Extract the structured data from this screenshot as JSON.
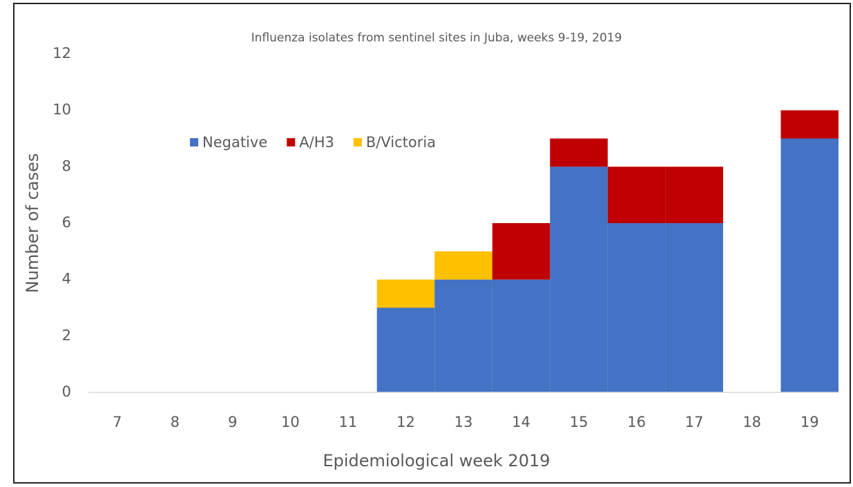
{
  "chart_data": {
    "type": "stacked_bar",
    "title": "Influenza isolates from sentinel sites in Juba, weeks 9-19, 2019",
    "x_label": "Epidemiological week 2019",
    "y_label": "Number of cases",
    "categories": [
      "7",
      "8",
      "9",
      "10",
      "11",
      "12",
      "13",
      "14",
      "15",
      "16",
      "17",
      "18",
      "19"
    ],
    "series": [
      {
        "name": "Negative",
        "color": "#4472c4",
        "values": [
          0,
          0,
          0,
          0,
          0,
          3,
          4,
          4,
          8,
          6,
          6,
          0,
          9
        ]
      },
      {
        "name": "A/H3",
        "color": "#c00000",
        "values": [
          0,
          0,
          0,
          0,
          0,
          0,
          0,
          2,
          1,
          2,
          2,
          0,
          1
        ]
      },
      {
        "name": "B/Victoria",
        "color": "#ffc000",
        "values": [
          0,
          0,
          0,
          0,
          0,
          1,
          1,
          0,
          0,
          0,
          0,
          0,
          0
        ]
      }
    ],
    "ylim": [
      0,
      12
    ],
    "yticks": [
      0,
      2,
      4,
      6,
      8,
      10,
      12
    ],
    "grid": false,
    "legend": "top-left"
  }
}
